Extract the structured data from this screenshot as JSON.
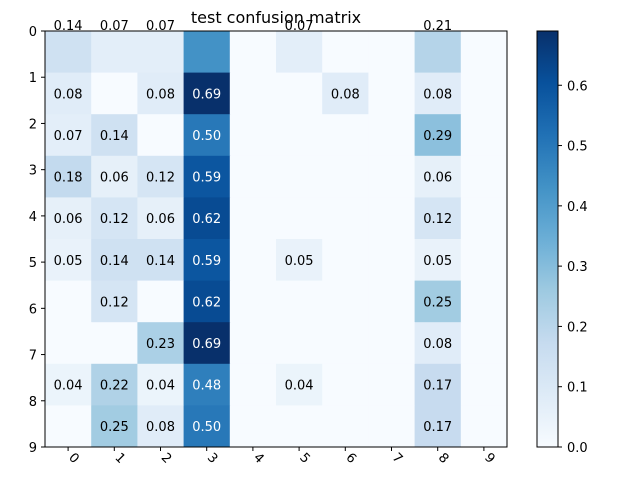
{
  "chart_data": {
    "type": "heatmap",
    "title": "test confusion matrix",
    "xlabel": "",
    "ylabel": "",
    "x_categories": [
      "0",
      "1",
      "2",
      "3",
      "4",
      "5",
      "6",
      "7",
      "8",
      "9"
    ],
    "y_categories": [
      "0",
      "1",
      "2",
      "3",
      "4",
      "5",
      "6",
      "7",
      "8",
      "9"
    ],
    "values": [
      [
        0.14,
        0.07,
        0.07,
        0.43,
        0.0,
        0.07,
        0.0,
        0.0,
        0.21,
        0.0
      ],
      [
        0.08,
        0.0,
        0.08,
        0.69,
        0.0,
        0.0,
        0.08,
        0.0,
        0.08,
        0.0
      ],
      [
        0.07,
        0.14,
        0.0,
        0.5,
        0.0,
        0.0,
        0.0,
        0.0,
        0.29,
        0.0
      ],
      [
        0.18,
        0.06,
        0.12,
        0.59,
        0.0,
        0.0,
        0.0,
        0.0,
        0.06,
        0.0
      ],
      [
        0.06,
        0.12,
        0.06,
        0.62,
        0.0,
        0.0,
        0.0,
        0.0,
        0.12,
        0.0
      ],
      [
        0.05,
        0.14,
        0.14,
        0.59,
        0.0,
        0.05,
        0.0,
        0.0,
        0.05,
        0.0
      ],
      [
        0.0,
        0.12,
        0.0,
        0.62,
        0.0,
        0.0,
        0.0,
        0.0,
        0.25,
        0.0
      ],
      [
        0.0,
        0.0,
        0.23,
        0.69,
        0.0,
        0.0,
        0.0,
        0.0,
        0.08,
        0.0
      ],
      [
        0.04,
        0.22,
        0.04,
        0.48,
        0.0,
        0.04,
        0.0,
        0.0,
        0.17,
        0.0
      ],
      [
        0.0,
        0.25,
        0.08,
        0.5,
        0.0,
        0.0,
        0.0,
        0.0,
        0.17,
        0.0
      ]
    ],
    "visible_labels": [
      [
        "0.14",
        "0.07",
        "0.07",
        "",
        "",
        "0.07",
        "",
        "",
        "0.21",
        ""
      ],
      [
        "0.08",
        "",
        "0.08",
        "0.69",
        "",
        "",
        "0.08",
        "",
        "0.08",
        ""
      ],
      [
        "0.07",
        "0.14",
        "",
        "0.50",
        "",
        "",
        "",
        "",
        "0.29",
        ""
      ],
      [
        "0.18",
        "0.06",
        "0.12",
        "0.59",
        "",
        "",
        "",
        "",
        "0.06",
        ""
      ],
      [
        "0.06",
        "0.12",
        "0.06",
        "0.62",
        "",
        "",
        "",
        "",
        "0.12",
        ""
      ],
      [
        "0.05",
        "0.14",
        "0.14",
        "0.59",
        "",
        "0.05",
        "",
        "",
        "0.05",
        ""
      ],
      [
        "",
        "0.12",
        "",
        "0.62",
        "",
        "",
        "",
        "",
        "0.25",
        ""
      ],
      [
        "",
        "",
        "0.23",
        "0.69",
        "",
        "",
        "",
        "",
        "0.08",
        ""
      ],
      [
        "0.04",
        "0.22",
        "0.04",
        "0.48",
        "",
        "0.04",
        "",
        "",
        "0.17",
        ""
      ],
      [
        "",
        "0.25",
        "0.08",
        "0.50",
        "",
        "",
        "",
        "",
        "0.17",
        ""
      ]
    ],
    "colorbar": {
      "range": [
        0,
        0.69
      ],
      "ticks": [
        0.0,
        0.1,
        0.2,
        0.3,
        0.4,
        0.5,
        0.6
      ],
      "tick_labels": [
        "0.0",
        "0.1",
        "0.2",
        "0.3",
        "0.4",
        "0.5",
        "0.6"
      ]
    },
    "colormap": "Blues",
    "x_tick_rotation": "45",
    "grid": false,
    "legend": "none"
  }
}
